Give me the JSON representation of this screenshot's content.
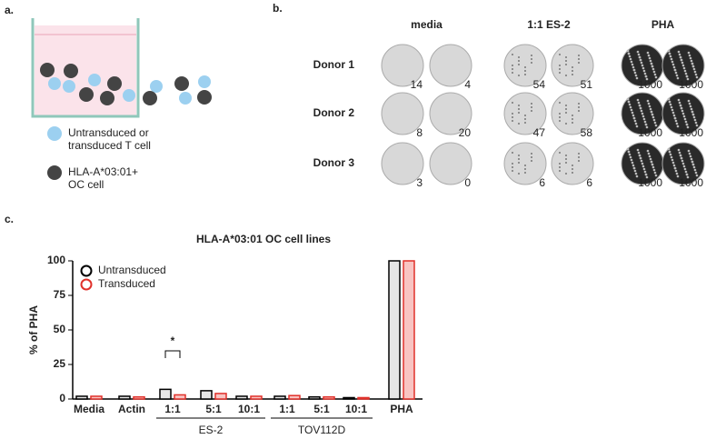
{
  "panel_a": {
    "label": "a.",
    "legend": [
      {
        "lines": [
          "Untransduced or",
          "transduced T cell"
        ]
      },
      {
        "lines": [
          "HLA-A*03:01+",
          "OC cell"
        ]
      }
    ]
  },
  "panel_b": {
    "label": "b.",
    "columns": [
      "media",
      "1:1 ES-2",
      "PHA"
    ],
    "rows": [
      {
        "name": "Donor 1",
        "counts": [
          14,
          4,
          54,
          51,
          1000,
          1000
        ]
      },
      {
        "name": "Donor 2",
        "counts": [
          8,
          20,
          47,
          58,
          1000,
          1000
        ]
      },
      {
        "name": "Donor 3",
        "counts": [
          3,
          0,
          6,
          6,
          1000,
          1000
        ]
      }
    ]
  },
  "panel_c": {
    "label": "c."
  },
  "chart_data": {
    "type": "bar",
    "title": "HLA-A*03:01 OC cell lines",
    "y_label": "% of PHA",
    "categories": [
      "Media",
      "Actin",
      "1:1",
      "5:1",
      "10:1",
      "1:1",
      "5:1",
      "10:1",
      "PHA"
    ],
    "groups": [
      {
        "name": "ES-2",
        "from": 2,
        "to": 4
      },
      {
        "name": "TOV112D",
        "from": 5,
        "to": 7
      }
    ],
    "series": [
      {
        "name": "Untransduced",
        "color": "#000000",
        "fill": "#e6e6e6",
        "values": [
          2,
          2,
          7,
          6,
          2,
          2,
          1.5,
          1,
          100
        ]
      },
      {
        "name": "Transduced",
        "color": "#e0302a",
        "fill": "#f8c4c2",
        "values": [
          2,
          1.5,
          3,
          4,
          2,
          2.5,
          1.5,
          1,
          100
        ]
      }
    ],
    "ylim": [
      0,
      100
    ],
    "yticks": [
      0,
      25,
      50,
      75,
      100
    ],
    "annotation": "*",
    "legend": "top-left"
  }
}
